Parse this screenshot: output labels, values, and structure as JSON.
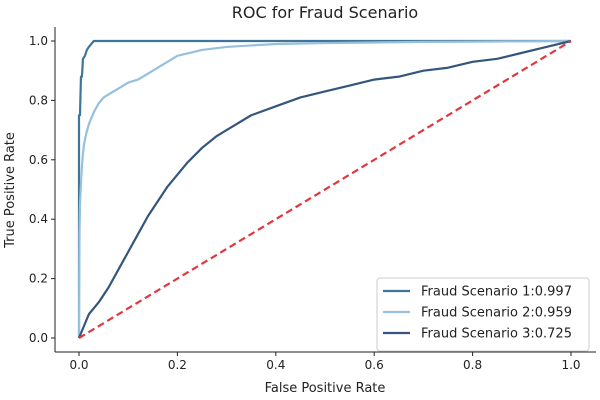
{
  "chart_data": {
    "type": "line",
    "title": "ROC for Fraud Scenario",
    "xlabel": "False Positive Rate",
    "ylabel": "True Positive Rate",
    "xlim": [
      0.0,
      1.0
    ],
    "ylim": [
      0.0,
      1.0
    ],
    "xticks": [
      "0.0",
      "0.2",
      "0.4",
      "0.6",
      "0.8",
      "1.0"
    ],
    "yticks": [
      "0.0",
      "0.2",
      "0.4",
      "0.6",
      "0.8",
      "1.0"
    ],
    "grid": false,
    "legend_position": "bottom-right",
    "series": [
      {
        "name": "Fraud Scenario 1:0.997",
        "color": "#3f7598",
        "x": [
          0.0,
          0.0,
          0.002,
          0.004,
          0.006,
          0.008,
          0.012,
          0.016,
          0.02,
          0.025,
          0.03,
          0.05,
          0.1,
          0.2,
          0.4,
          0.6,
          0.8,
          1.0
        ],
        "y": [
          0.0,
          0.75,
          0.75,
          0.88,
          0.88,
          0.94,
          0.95,
          0.97,
          0.98,
          0.99,
          1.0,
          1.0,
          1.0,
          1.0,
          1.0,
          1.0,
          1.0,
          1.0
        ]
      },
      {
        "name": "Fraud Scenario 2:0.959",
        "color": "#96c0dc",
        "x": [
          0.0,
          0.001,
          0.002,
          0.004,
          0.006,
          0.008,
          0.01,
          0.015,
          0.02,
          0.03,
          0.04,
          0.05,
          0.06,
          0.08,
          0.1,
          0.12,
          0.14,
          0.16,
          0.18,
          0.2,
          0.25,
          0.3,
          0.35,
          0.4,
          0.5,
          0.6,
          0.7,
          0.8,
          0.9,
          1.0
        ],
        "y": [
          0.0,
          0.35,
          0.45,
          0.52,
          0.58,
          0.62,
          0.65,
          0.69,
          0.72,
          0.76,
          0.79,
          0.81,
          0.82,
          0.84,
          0.86,
          0.87,
          0.89,
          0.91,
          0.93,
          0.95,
          0.97,
          0.98,
          0.985,
          0.99,
          0.993,
          0.995,
          0.997,
          0.998,
          0.999,
          1.0
        ]
      },
      {
        "name": "Fraud Scenario 3:0.725",
        "color": "#34567c",
        "x": [
          0.0,
          0.02,
          0.04,
          0.06,
          0.08,
          0.1,
          0.12,
          0.14,
          0.16,
          0.18,
          0.2,
          0.22,
          0.25,
          0.28,
          0.3,
          0.35,
          0.4,
          0.45,
          0.5,
          0.55,
          0.6,
          0.65,
          0.7,
          0.75,
          0.8,
          0.85,
          0.9,
          0.95,
          1.0
        ],
        "y": [
          0.0,
          0.08,
          0.12,
          0.17,
          0.23,
          0.29,
          0.35,
          0.41,
          0.46,
          0.51,
          0.55,
          0.59,
          0.64,
          0.68,
          0.7,
          0.75,
          0.78,
          0.81,
          0.83,
          0.85,
          0.87,
          0.88,
          0.9,
          0.91,
          0.93,
          0.94,
          0.96,
          0.98,
          1.0
        ]
      },
      {
        "name": "",
        "color": "#e0383f",
        "dashed": true,
        "x": [
          0.0,
          1.0
        ],
        "y": [
          0.0,
          1.0
        ]
      }
    ]
  }
}
